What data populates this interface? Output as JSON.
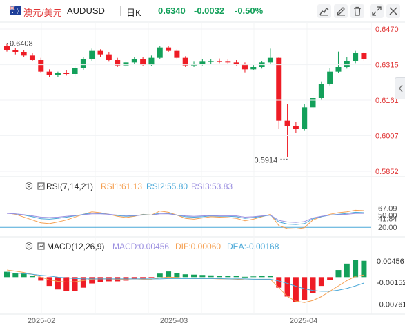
{
  "header": {
    "pair_cn": "澳元/美元",
    "pair_code": "AUDUSD",
    "period": "日K",
    "price": "0.6340",
    "change": "-0.0032",
    "change_pct": "-0.50%"
  },
  "colors": {
    "up": "#13a05a",
    "down": "#ee1c25",
    "rsi1": "#f5a052",
    "rsi2": "#4aa8d8",
    "rsi3": "#9b8fe0",
    "macd": "#9b8fe0",
    "dif": "#f5a052",
    "dea": "#4aa8d8"
  },
  "icons": [
    "indicator-icon",
    "draw-icon",
    "delete-icon",
    "expand-icon",
    "close-icon",
    "collapse-icon"
  ],
  "rsi": {
    "label": "RSI(7,14,21)",
    "rsi1": "RSI1:61.13",
    "rsi2": "RSI2:55.80",
    "rsi3": "RSI3:53.83"
  },
  "macd": {
    "label": "MACD(12,26,9)",
    "macd": "MACD:0.00456",
    "dif": "DIF:0.00060",
    "dea": "DEA:-0.00168"
  },
  "chart_data": [
    {
      "type": "candlestick",
      "ylim": [
        0.5852,
        0.647
      ],
      "y_ticks": [
        "0.6470",
        "0.6315",
        "0.6161",
        "0.6007",
        "0.5852"
      ],
      "x_ticks": [
        "2025-02",
        "2025-03",
        "2025-04"
      ],
      "annotations": {
        "high": "0.6408",
        "low": "0.5914"
      },
      "candles": [
        [
          0.6395,
          0.638,
          0.6408,
          0.6372
        ],
        [
          0.638,
          0.637,
          0.6388,
          0.636
        ],
        [
          0.637,
          0.6355,
          0.6378,
          0.6348
        ],
        [
          0.6355,
          0.6335,
          0.6365,
          0.633
        ],
        [
          0.6335,
          0.6285,
          0.6345,
          0.628
        ],
        [
          0.6285,
          0.627,
          0.6295,
          0.6262
        ],
        [
          0.627,
          0.6278,
          0.6285,
          0.626
        ],
        [
          0.6278,
          0.6275,
          0.629,
          0.6268
        ],
        [
          0.6275,
          0.63,
          0.631,
          0.6265
        ],
        [
          0.63,
          0.634,
          0.635,
          0.6292
        ],
        [
          0.634,
          0.6375,
          0.6385,
          0.6332
        ],
        [
          0.6375,
          0.636,
          0.6382,
          0.635
        ],
        [
          0.636,
          0.6335,
          0.6368,
          0.6328
        ],
        [
          0.6335,
          0.6312,
          0.6345,
          0.6305
        ],
        [
          0.6312,
          0.6325,
          0.6335,
          0.6305
        ],
        [
          0.6325,
          0.634,
          0.635,
          0.6318
        ],
        [
          0.634,
          0.6315,
          0.6348,
          0.6308
        ],
        [
          0.6315,
          0.6345,
          0.6355,
          0.631
        ],
        [
          0.6345,
          0.639,
          0.6398,
          0.6338
        ],
        [
          0.639,
          0.6375,
          0.6395,
          0.6368
        ],
        [
          0.6375,
          0.6345,
          0.6382,
          0.6338
        ],
        [
          0.6345,
          0.6312,
          0.6352,
          0.6305
        ],
        [
          0.6312,
          0.6318,
          0.6328,
          0.6305
        ],
        [
          0.6318,
          0.6328,
          0.634,
          0.6312
        ],
        [
          0.6328,
          0.633,
          0.634,
          0.6318
        ],
        [
          0.633,
          0.6328,
          0.6342,
          0.6322
        ],
        [
          0.6328,
          0.6325,
          0.6338,
          0.6318
        ],
        [
          0.6325,
          0.632,
          0.6335,
          0.6312
        ],
        [
          0.632,
          0.6295,
          0.6325,
          0.6282
        ],
        [
          0.6295,
          0.6305,
          0.6315,
          0.629
        ],
        [
          0.6305,
          0.6325,
          0.6332,
          0.6298
        ],
        [
          0.6325,
          0.6345,
          0.6385,
          0.632
        ],
        [
          0.6345,
          0.6072,
          0.635,
          0.6035
        ],
        [
          0.6072,
          0.605,
          0.6145,
          0.5914
        ],
        [
          0.605,
          0.6035,
          0.6068,
          0.602
        ],
        [
          0.6035,
          0.613,
          0.6145,
          0.603
        ],
        [
          0.613,
          0.617,
          0.6182,
          0.612
        ],
        [
          0.617,
          0.623,
          0.624,
          0.6162
        ],
        [
          0.623,
          0.6285,
          0.63,
          0.6225
        ],
        [
          0.6285,
          0.6305,
          0.6372,
          0.628
        ],
        [
          0.6305,
          0.633,
          0.6348,
          0.6298
        ],
        [
          0.633,
          0.6365,
          0.6375,
          0.6322
        ],
        [
          0.6365,
          0.634,
          0.637,
          0.6332
        ]
      ]
    },
    {
      "type": "line",
      "title": "RSI(7,14,21)",
      "ylim": [
        0,
        100
      ],
      "y_ticks": [
        "67.09",
        "50.00",
        "41.84",
        "20.00"
      ],
      "reference_lines": [
        50,
        20
      ],
      "series": [
        {
          "name": "RSI1",
          "values": [
            55,
            52,
            45,
            38,
            31,
            29,
            33,
            38,
            45,
            52,
            58,
            56,
            52,
            47,
            44,
            47,
            52,
            50,
            60,
            57,
            50,
            42,
            40,
            43,
            46,
            45,
            44,
            42,
            36,
            40,
            46,
            52,
            24,
            17,
            16,
            19,
            38,
            46,
            52,
            56,
            58,
            62,
            61
          ]
        },
        {
          "name": "RSI2",
          "values": [
            55,
            53,
            50,
            46,
            41,
            40,
            42,
            45,
            48,
            52,
            55,
            54,
            52,
            49,
            47,
            48,
            51,
            50,
            55,
            54,
            50,
            46,
            45,
            46,
            48,
            47,
            47,
            46,
            42,
            44,
            47,
            50,
            33,
            28,
            27,
            29,
            41,
            46,
            50,
            52,
            54,
            57,
            56
          ]
        },
        {
          "name": "RSI3",
          "values": [
            54,
            53,
            51,
            48,
            45,
            44,
            45,
            47,
            49,
            51,
            53,
            53,
            52,
            50,
            49,
            49,
            50,
            50,
            53,
            53,
            50,
            48,
            47,
            48,
            49,
            48,
            48,
            48,
            45,
            46,
            48,
            50,
            37,
            33,
            32,
            34,
            43,
            47,
            50,
            51,
            52,
            54,
            54
          ]
        }
      ]
    },
    {
      "type": "bar+line",
      "title": "MACD(12,26,9)",
      "ylim": [
        -0.0095,
        0.0065
      ],
      "y_ticks": [
        "0.00456",
        "-0.00152",
        "-0.00761"
      ],
      "macd_hist": [
        0.0015,
        0.0012,
        0.001,
        0.0004,
        -0.001,
        -0.0025,
        -0.0035,
        -0.004,
        -0.004,
        -0.003,
        -0.0018,
        -0.0014,
        -0.0012,
        -0.0012,
        -0.001,
        -0.0005,
        -0.0004,
        -0.0002,
        0.001,
        0.0016,
        0.0012,
        0.0008,
        0.0007,
        0.0006,
        0.0005,
        0.0004,
        0.0004,
        0.0003,
        0.0001,
        0.0002,
        0.0003,
        0.0004,
        -0.003,
        -0.0055,
        -0.007,
        -0.0065,
        -0.0045,
        -0.0025,
        -0.0008,
        0.002,
        0.0038,
        0.0048,
        0.0046
      ],
      "dif": [
        0.002,
        0.0017,
        0.0013,
        0.0008,
        0.0,
        -0.0008,
        -0.0012,
        -0.0014,
        -0.0013,
        -0.001,
        -0.0006,
        -0.0005,
        -0.0005,
        -0.0006,
        -0.0006,
        -0.0005,
        -0.0006,
        -0.0006,
        -0.0002,
        0.0,
        -0.0001,
        -0.0003,
        -0.0004,
        -0.0004,
        -0.0004,
        -0.0005,
        -0.0005,
        -0.0006,
        -0.0008,
        -0.0008,
        -0.0007,
        -0.0006,
        -0.003,
        -0.0055,
        -0.0068,
        -0.0072,
        -0.0066,
        -0.0055,
        -0.004,
        -0.0025,
        -0.001,
        0.0002,
        0.0006
      ],
      "dea": [
        0.0012,
        0.0011,
        0.001,
        0.0008,
        0.0005,
        0.0003,
        0.0,
        -0.0002,
        -0.0004,
        -0.0005,
        -0.0005,
        -0.0005,
        -0.0005,
        -0.0005,
        -0.0005,
        -0.0005,
        -0.0005,
        -0.0005,
        -0.0005,
        -0.0004,
        -0.0004,
        -0.0004,
        -0.0004,
        -0.0004,
        -0.0004,
        -0.0004,
        -0.0005,
        -0.0005,
        -0.0005,
        -0.0006,
        -0.0006,
        -0.0006,
        -0.0011,
        -0.0018,
        -0.0026,
        -0.0033,
        -0.0038,
        -0.004,
        -0.004,
        -0.0037,
        -0.0032,
        -0.0025,
        -0.0017
      ]
    }
  ]
}
